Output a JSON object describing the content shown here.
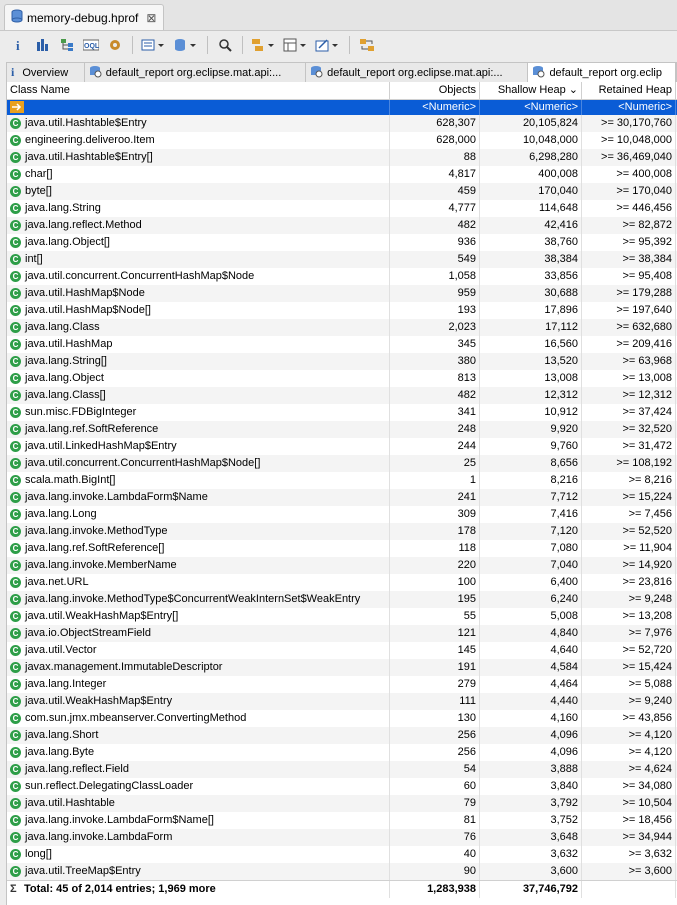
{
  "editor_tab": {
    "title": "memory-debug.hprof"
  },
  "subtabs": [
    {
      "label": "Overview",
      "icon": "info-icon"
    },
    {
      "label": "default_report  org.eclipse.mat.api:...",
      "icon": "report-icon"
    },
    {
      "label": "default_report  org.eclipse.mat.api:...",
      "icon": "report-icon"
    },
    {
      "label": "default_report  org.eclip",
      "icon": "report-icon"
    }
  ],
  "table": {
    "columns": [
      "Class Name",
      "Objects",
      "Shallow Heap",
      "Retained Heap"
    ],
    "filter": [
      "",
      "<Numeric>",
      "<Numeric>",
      "<Numeric>"
    ],
    "rows": [
      [
        "java.util.Hashtable$Entry",
        "628,307",
        "20,105,824",
        ">= 30,170,760"
      ],
      [
        "engineering.deliveroo.Item",
        "628,000",
        "10,048,000",
        ">= 10,048,000"
      ],
      [
        "java.util.Hashtable$Entry[]",
        "88",
        "6,298,280",
        ">= 36,469,040"
      ],
      [
        "char[]",
        "4,817",
        "400,008",
        ">= 400,008"
      ],
      [
        "byte[]",
        "459",
        "170,040",
        ">= 170,040"
      ],
      [
        "java.lang.String",
        "4,777",
        "114,648",
        ">= 446,456"
      ],
      [
        "java.lang.reflect.Method",
        "482",
        "42,416",
        ">= 82,872"
      ],
      [
        "java.lang.Object[]",
        "936",
        "38,760",
        ">= 95,392"
      ],
      [
        "int[]",
        "549",
        "38,384",
        ">= 38,384"
      ],
      [
        "java.util.concurrent.ConcurrentHashMap$Node",
        "1,058",
        "33,856",
        ">= 95,408"
      ],
      [
        "java.util.HashMap$Node",
        "959",
        "30,688",
        ">= 179,288"
      ],
      [
        "java.util.HashMap$Node[]",
        "193",
        "17,896",
        ">= 197,640"
      ],
      [
        "java.lang.Class",
        "2,023",
        "17,112",
        ">= 632,680"
      ],
      [
        "java.util.HashMap",
        "345",
        "16,560",
        ">= 209,416"
      ],
      [
        "java.lang.String[]",
        "380",
        "13,520",
        ">= 63,968"
      ],
      [
        "java.lang.Object",
        "813",
        "13,008",
        ">= 13,008"
      ],
      [
        "java.lang.Class[]",
        "482",
        "12,312",
        ">= 12,312"
      ],
      [
        "sun.misc.FDBigInteger",
        "341",
        "10,912",
        ">= 37,424"
      ],
      [
        "java.lang.ref.SoftReference",
        "248",
        "9,920",
        ">= 32,520"
      ],
      [
        "java.util.LinkedHashMap$Entry",
        "244",
        "9,760",
        ">= 31,472"
      ],
      [
        "java.util.concurrent.ConcurrentHashMap$Node[]",
        "25",
        "8,656",
        ">= 108,192"
      ],
      [
        "scala.math.BigInt[]",
        "1",
        "8,216",
        ">= 8,216"
      ],
      [
        "java.lang.invoke.LambdaForm$Name",
        "241",
        "7,712",
        ">= 15,224"
      ],
      [
        "java.lang.Long",
        "309",
        "7,416",
        ">= 7,456"
      ],
      [
        "java.lang.invoke.MethodType",
        "178",
        "7,120",
        ">= 52,520"
      ],
      [
        "java.lang.ref.SoftReference[]",
        "118",
        "7,080",
        ">= 11,904"
      ],
      [
        "java.lang.invoke.MemberName",
        "220",
        "7,040",
        ">= 14,920"
      ],
      [
        "java.net.URL",
        "100",
        "6,400",
        ">= 23,816"
      ],
      [
        "java.lang.invoke.MethodType$ConcurrentWeakInternSet$WeakEntry",
        "195",
        "6,240",
        ">= 9,248"
      ],
      [
        "java.util.WeakHashMap$Entry[]",
        "55",
        "5,008",
        ">= 13,208"
      ],
      [
        "java.io.ObjectStreamField",
        "121",
        "4,840",
        ">= 7,976"
      ],
      [
        "java.util.Vector",
        "145",
        "4,640",
        ">= 52,720"
      ],
      [
        "javax.management.ImmutableDescriptor",
        "191",
        "4,584",
        ">= 15,424"
      ],
      [
        "java.lang.Integer",
        "279",
        "4,464",
        ">= 5,088"
      ],
      [
        "java.util.WeakHashMap$Entry",
        "111",
        "4,440",
        ">= 9,240"
      ],
      [
        "com.sun.jmx.mbeanserver.ConvertingMethod",
        "130",
        "4,160",
        ">= 43,856"
      ],
      [
        "java.lang.Short",
        "256",
        "4,096",
        ">= 4,120"
      ],
      [
        "java.lang.Byte",
        "256",
        "4,096",
        ">= 4,120"
      ],
      [
        "java.lang.reflect.Field",
        "54",
        "3,888",
        ">= 4,624"
      ],
      [
        "sun.reflect.DelegatingClassLoader",
        "60",
        "3,840",
        ">= 34,080"
      ],
      [
        "java.util.Hashtable",
        "79",
        "3,792",
        ">= 10,504"
      ],
      [
        "java.lang.invoke.LambdaForm$Name[]",
        "81",
        "3,752",
        ">= 18,456"
      ],
      [
        "java.lang.invoke.LambdaForm",
        "76",
        "3,648",
        ">= 34,944"
      ],
      [
        "long[]",
        "40",
        "3,632",
        ">= 3,632"
      ],
      [
        "java.util.TreeMap$Entry",
        "90",
        "3,600",
        ">= 3,600"
      ]
    ],
    "total": {
      "label": "Total: 45 of 2,014 entries; 1,969 more",
      "objects": "1,283,938",
      "shallow": "37,746,792"
    }
  }
}
